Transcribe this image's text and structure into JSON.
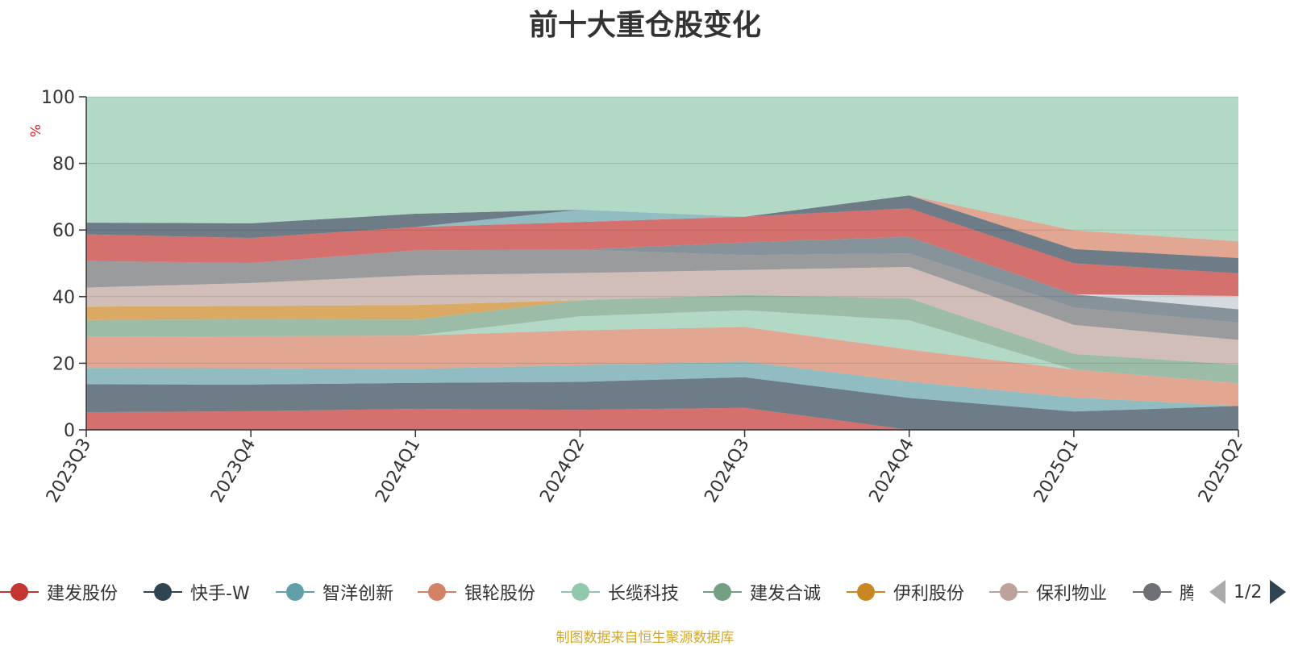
{
  "title": "前十大重仓股变化",
  "source_note": "制图数据来自恒生聚源数据库",
  "pager": {
    "text": "1/2"
  },
  "chart_data": {
    "type": "area",
    "stacked": true,
    "title": "前十大重仓股变化",
    "ylabel": "%",
    "ylim": [
      0,
      100
    ],
    "yticks": [
      0,
      20,
      40,
      60,
      80,
      100
    ],
    "grid": true,
    "legend_position": "bottom",
    "categories": [
      "2023Q3",
      "2023Q4",
      "2024Q1",
      "2024Q2",
      "2024Q3",
      "2024Q4",
      "2025Q1",
      "2025Q2"
    ],
    "series": [
      {
        "name": "建发股份",
        "color": "#c23531",
        "values": [
          5.3,
          5.6,
          6.3,
          6.0,
          6.6,
          0,
          0,
          0
        ]
      },
      {
        "name": "快手-W",
        "color": "#2f4554",
        "values": [
          8.4,
          8.0,
          7.8,
          8.4,
          9.2,
          9.6,
          5.5,
          7.2
        ]
      },
      {
        "name": "智洋创新",
        "color": "#61a0a8",
        "values": [
          4.9,
          4.9,
          4.2,
          5.0,
          4.7,
          4.9,
          4.2,
          0
        ]
      },
      {
        "name": "银轮股份",
        "color": "#d48265",
        "values": [
          9.4,
          9.6,
          10.0,
          10.5,
          10.4,
          9.6,
          8.4,
          6.8
        ]
      },
      {
        "name": "长缆科技",
        "color": "#91c7ae",
        "values": [
          0,
          0,
          0,
          4.2,
          5.0,
          8.8,
          0,
          0
        ]
      },
      {
        "name": "建发合诚",
        "color": "#749f83",
        "values": [
          5.0,
          5.1,
          4.8,
          4.8,
          4.6,
          6.6,
          4.7,
          5.6
        ]
      },
      {
        "name": "伊利股份",
        "color": "#ca8622",
        "values": [
          4.0,
          4.0,
          4.4,
          0,
          0,
          0,
          0,
          0
        ]
      },
      {
        "name": "保利物业",
        "color": "#bda29a",
        "values": [
          5.7,
          6.9,
          8.9,
          8.2,
          7.5,
          9.4,
          8.7,
          7.4
        ]
      },
      {
        "name": "腾讯控股",
        "color": "#6e7074",
        "values": [
          8.0,
          6.0,
          7.5,
          7.0,
          4.5,
          4.1,
          5.2,
          5.2
        ]
      },
      {
        "name": "",
        "color": "#546570",
        "values": [
          0,
          0,
          0,
          0,
          3.8,
          5.0,
          4.0,
          4.0
        ]
      },
      {
        "name": "",
        "color": "#c4ccd3",
        "values": [
          0,
          0,
          0,
          0,
          0,
          0,
          0,
          4.0
        ]
      },
      {
        "name": "",
        "color": "#c23531",
        "values": [
          8.0,
          7.5,
          7.0,
          8.3,
          7.7,
          8.5,
          9.3,
          6.8
        ]
      },
      {
        "name": "",
        "color": "#61a0a8",
        "values": [
          0,
          0,
          0,
          3.7,
          0,
          0,
          0,
          0
        ]
      },
      {
        "name": "",
        "color": "#2f4554",
        "values": [
          3.5,
          4.4,
          4.0,
          0,
          0,
          3.9,
          4.3,
          4.6
        ]
      },
      {
        "name": "",
        "color": "#d48265",
        "values": [
          0,
          0,
          0,
          0,
          0,
          0,
          5.6,
          5.0
        ]
      },
      {
        "name": "",
        "color": "#91c7ae",
        "values": [
          37.8,
          38.0,
          35.1,
          33.9,
          36.0,
          29.6,
          40.1,
          43.4
        ]
      }
    ]
  }
}
